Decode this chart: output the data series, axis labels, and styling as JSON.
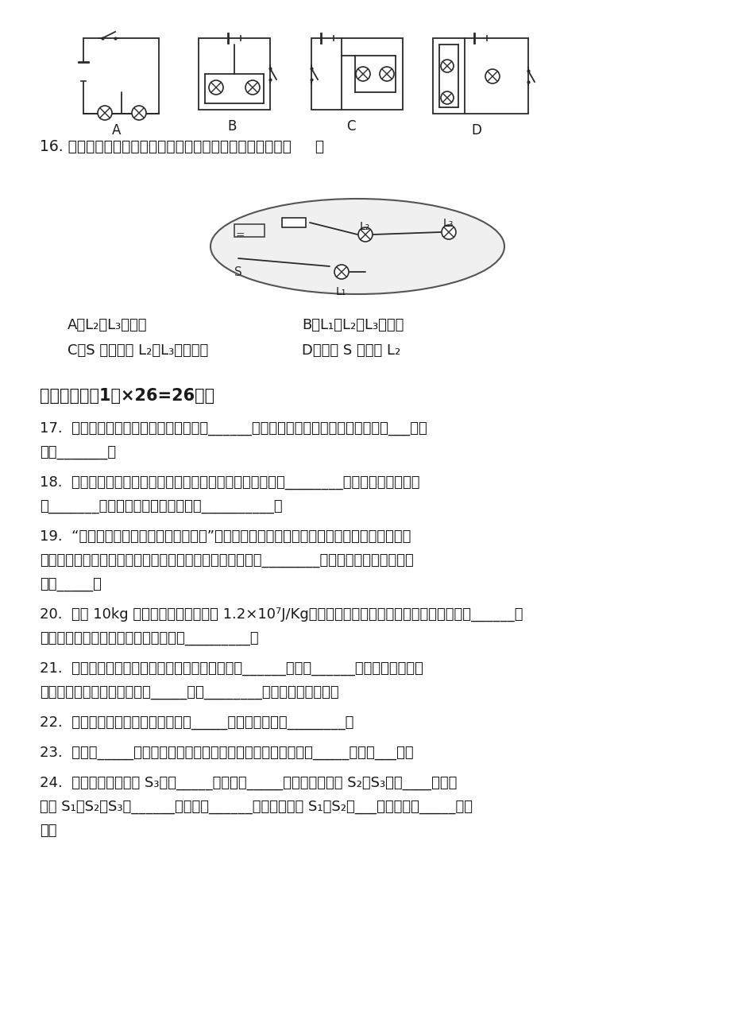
{
  "bg_color": "#ffffff",
  "text_color": "#000000",
  "circuit_labels": [
    "A",
    "B",
    "C",
    "D"
  ],
  "q16_text": "16. 如图所示，对这个连好的电路，下面说法中不正确的是（     ）",
  "q16_opt_A": "A．L₂、L₃是串联",
  "q16_opt_B": "B．L₁、L₂、L₃是并联",
  "q16_opt_C": "C．S 闭合后将 L₂、L₃局部短路",
  "q16_opt_D": "D．开关 S 控制灯 L₂",
  "section3_title": "三、填空题（1分×26=26分）",
  "q17_lines": [
    "17.  修筑拦河坝用来提高水位是为了增加______能，当打开大坝的闸门时，水流下把___能转",
    "化为_______。"
  ],
  "q18_lines": [
    "18.  下列物体各具有哪种机械能。沿水平轨道行使的火车具有________；被拉长的橡皮筋具",
    "有_______；正在空中下落的伞兵具有__________。"
  ],
  "q19_lines": [
    "19.  “花气袍人知骤暖，鹊声穿树喜新晴”，这是南宋诗人陆游《村居书喜》中的两句诗。对于",
    "前一句，从物理学角度可以理解为：花朵分泌的芳香由分子________加快，说明当时周边气温",
    "突然_____。"
  ],
  "q20_lines": [
    "20.  一捆 10kg 的干木柴，它的热值是 1.2×10⁷J/Kg，如果拿走一半，剩下半捆干木柴的热值是______，",
    "这华捆干木柴完全燃烧后放出的热量是_________。"
  ],
  "q21_lines": [
    "21.  用热传递的方法来改变物体的内能，实质上是______转移到______；而用做功的方法",
    "来改变物体的内能，实质上是_____能和________能相互转化的过程。"
  ],
  "q22_lines": [
    "22.  内能的重要应用：一是可以用它_____，二是可以用它________。"
  ],
  "q23_lines": [
    "23.  电荷的_____形成电流。在电源的外部，电流的方向是从电源_____极流向___极。"
  ],
  "q24_lines": [
    "24.  如图所示，只闭合 S₃，灯_____发光，是_____联电路；只闭合 S₂、S₃，灯____发光；",
    "闭合 S₁、S₂、S₃灯______发光，是______电路；只闭合 S₁、S₂灯___发光，是灯_____联电",
    "路。"
  ]
}
